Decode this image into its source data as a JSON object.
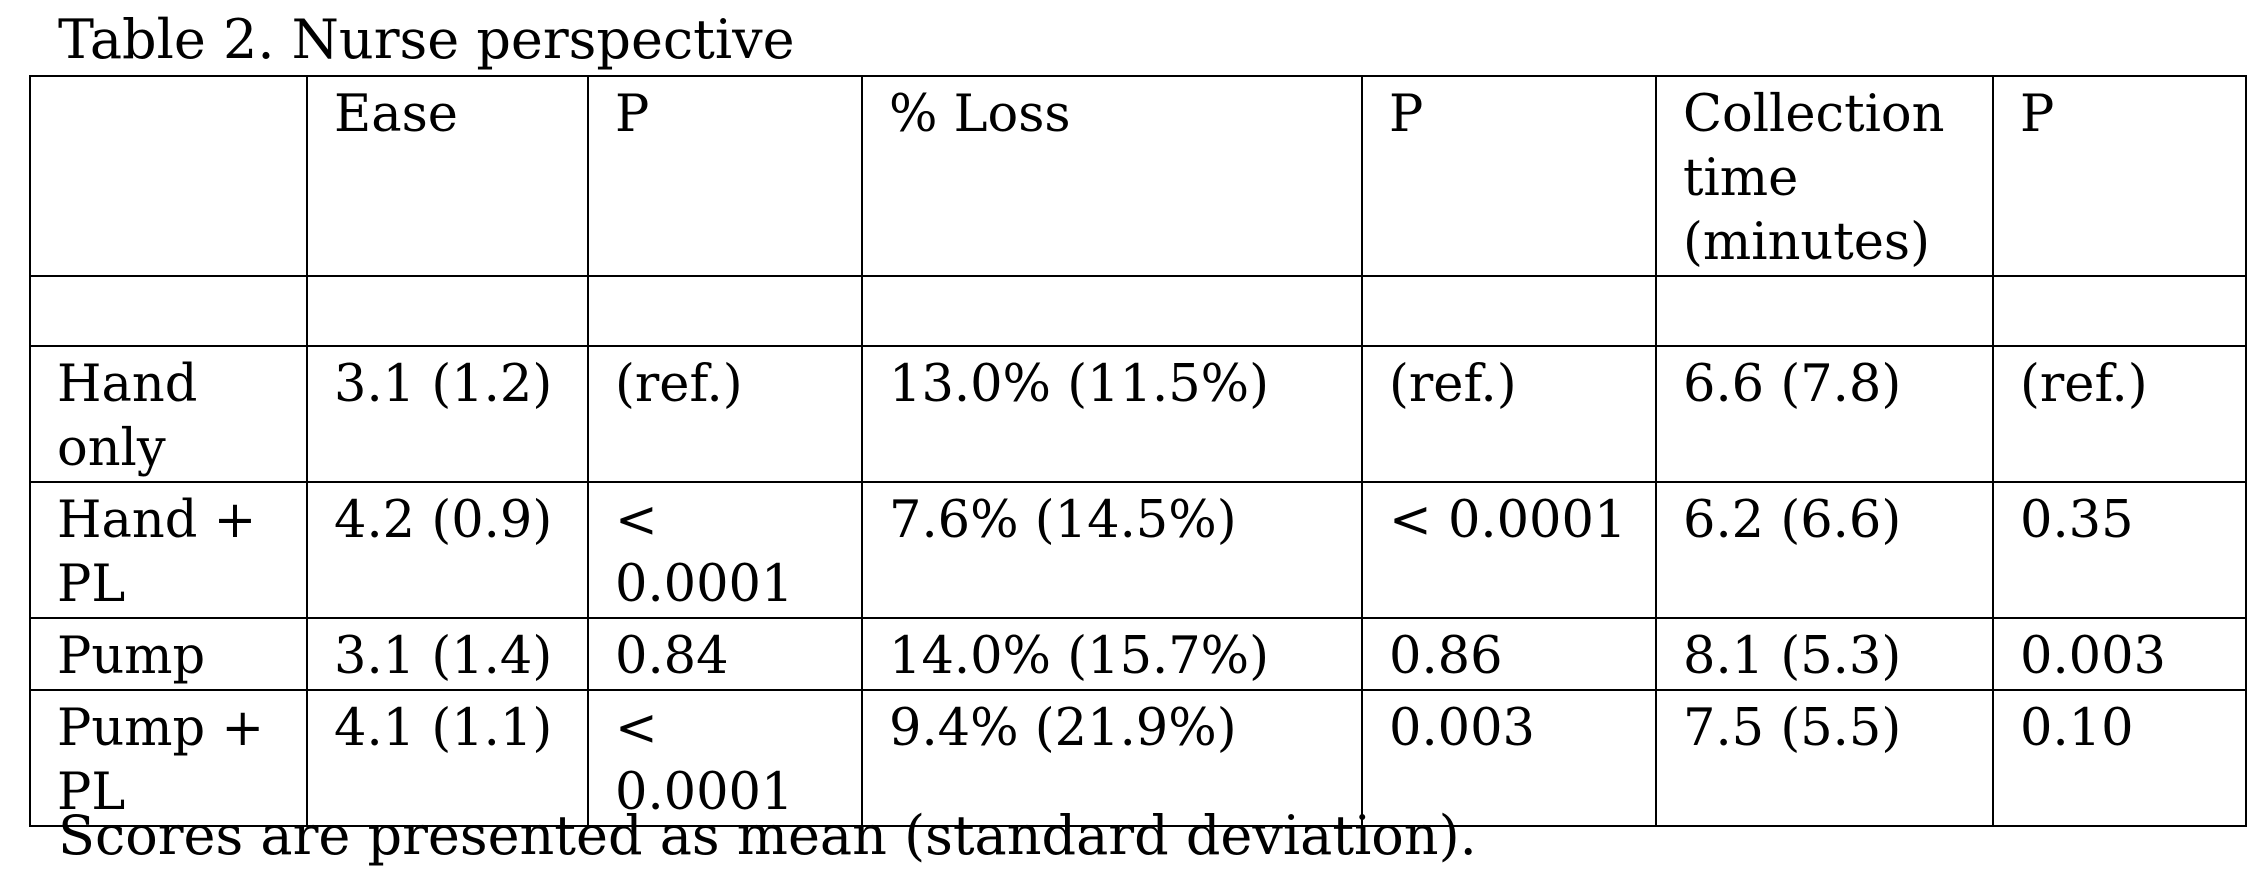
{
  "title": "Table 2. Nurse perspective",
  "table": {
    "headers": [
      "",
      "Ease",
      "P",
      "% Loss",
      "P",
      "Collection time (minutes)",
      "P"
    ],
    "rows": [
      [
        "Hand only",
        "3.1 (1.2)",
        "(ref.)",
        "13.0% (11.5%)",
        "(ref.)",
        "6.6 (7.8)",
        "(ref.)"
      ],
      [
        "Hand + PL",
        "4.2 (0.9)",
        "< 0.0001",
        "7.6% (14.5%)",
        "< 0.0001",
        "6.2 (6.6)",
        "0.35"
      ],
      [
        "Pump",
        "3.1 (1.4)",
        "0.84",
        "14.0% (15.7%)",
        "0.86",
        "8.1 (5.3)",
        "0.003"
      ],
      [
        "Pump + PL",
        "4.1 (1.1)",
        "< 0.0001",
        "9.4% (21.9%)",
        "0.003",
        "7.5 (5.5)",
        "0.10"
      ]
    ]
  },
  "footnote": "Scores are presented as mean (standard deviation)."
}
